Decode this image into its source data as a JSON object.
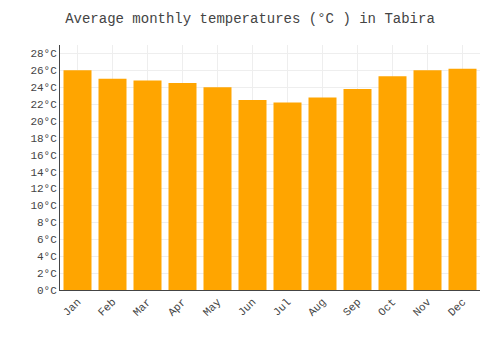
{
  "chart_data": {
    "type": "bar",
    "title": "Average monthly temperatures (°C ) in Tabira",
    "categories": [
      "Jan",
      "Feb",
      "Mar",
      "Apr",
      "May",
      "Jun",
      "Jul",
      "Aug",
      "Sep",
      "Oct",
      "Nov",
      "Dec"
    ],
    "values": [
      26.0,
      25.0,
      24.8,
      24.5,
      24.0,
      22.5,
      22.2,
      22.8,
      23.8,
      25.3,
      26.0,
      26.2
    ],
    "color": "#FFA500",
    "ylim": [
      0,
      29
    ],
    "yticks": [
      {
        "value": 0,
        "label": "0°C"
      },
      {
        "value": 2,
        "label": "2°C"
      },
      {
        "value": 4,
        "label": "4°C"
      },
      {
        "value": 6,
        "label": "6°C"
      },
      {
        "value": 8,
        "label": "8°C"
      },
      {
        "value": 10,
        "label": "10°C"
      },
      {
        "value": 12,
        "label": "12°C"
      },
      {
        "value": 14,
        "label": "14°C"
      },
      {
        "value": 16,
        "label": "16°C"
      },
      {
        "value": 18,
        "label": "18°C"
      },
      {
        "value": 20,
        "label": "20°C"
      },
      {
        "value": 22,
        "label": "22°C"
      },
      {
        "value": 24,
        "label": "24°C"
      },
      {
        "value": 26,
        "label": "26°C"
      },
      {
        "value": 28,
        "label": "28°C"
      }
    ],
    "grid": true
  }
}
